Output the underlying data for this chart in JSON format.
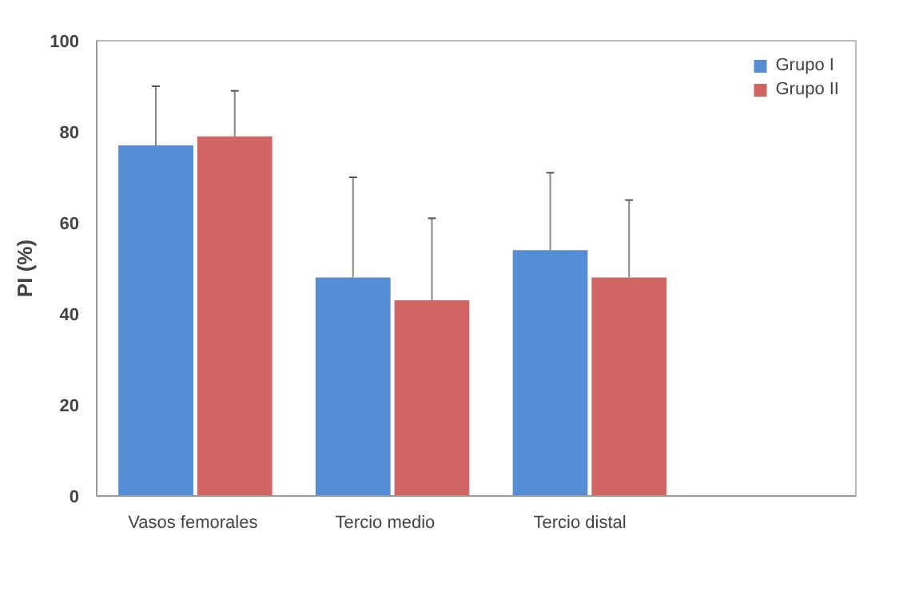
{
  "chart_data": {
    "type": "bar",
    "ylabel": "PI (%)",
    "categories": [
      "Vasos  femorales",
      "Tercio    medio",
      "Tercio     distal"
    ],
    "series": [
      {
        "name": "Grupo I",
        "color": "#558ed5",
        "values": [
          77,
          48,
          54
        ],
        "errors": [
          [
            77,
            90
          ],
          [
            48,
            70
          ],
          [
            54,
            71
          ]
        ]
      },
      {
        "name": "Grupo II",
        "color": "#d06563",
        "values": [
          79,
          43,
          48
        ],
        "errors": [
          [
            79,
            89
          ],
          [
            43,
            61
          ],
          [
            48,
            65
          ]
        ]
      }
    ],
    "ylim": [
      0,
      100
    ],
    "yticks": [
      0,
      20,
      40,
      60,
      80,
      100
    ],
    "grid": false,
    "legend": "top right"
  }
}
